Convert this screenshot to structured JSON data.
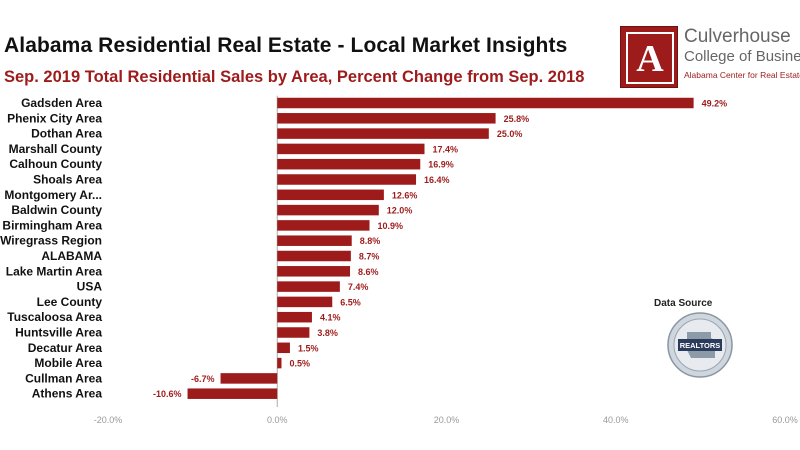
{
  "header": {
    "title": "Alabama Residential Real Estate - Local Market Insights",
    "subtitle": "Sep. 2019 Total Residential Sales by Area, Percent Change from Sep. 2018"
  },
  "logo": {
    "seal_letter": "A",
    "line1": "Culverhouse",
    "line2": "College of Business",
    "line3": "Alabama Center for Real Estate"
  },
  "data_source": {
    "label": "Data Source",
    "badge_text": "REALTORS"
  },
  "colors": {
    "bar": "#9e1b1b",
    "label": "#9e1b1b",
    "axis": "#aaaaaa"
  },
  "chart_data": {
    "type": "bar",
    "orientation": "horizontal",
    "title": "Alabama Residential Real Estate - Local Market Insights",
    "subtitle": "Sep. 2019 Total Residential Sales by Area, Percent Change from Sep. 2018",
    "categories": [
      "Gadsden Area",
      "Phenix City Area",
      "Dothan Area",
      "Marshall County",
      "Calhoun County",
      "Shoals Area",
      "Montgomery Ar...",
      "Baldwin County",
      "Birmingham Area",
      "Wiregrass Region",
      "ALABAMA",
      "Lake Martin Area",
      "USA",
      "Lee County",
      "Tuscaloosa Area",
      "Huntsville Area",
      "Decatur Area",
      "Mobile Area",
      "Cullman Area",
      "Athens Area"
    ],
    "values": [
      49.2,
      25.8,
      25.0,
      17.4,
      16.9,
      16.4,
      12.6,
      12.0,
      10.9,
      8.8,
      8.7,
      8.6,
      7.4,
      6.5,
      4.1,
      3.8,
      1.5,
      0.5,
      -6.7,
      -10.6
    ],
    "value_labels": [
      "49.2%",
      "25.8%",
      "25.0%",
      "17.4%",
      "16.9%",
      "16.4%",
      "12.6%",
      "12.0%",
      "10.9%",
      "8.8%",
      "8.7%",
      "8.6%",
      "7.4%",
      "6.5%",
      "4.1%",
      "3.8%",
      "1.5%",
      "0.5%",
      "-6.7%",
      "-10.6%"
    ],
    "xlim": [
      -20,
      60
    ],
    "x_ticks": [
      -20,
      0,
      20,
      40,
      60
    ],
    "x_tick_labels": [
      "-20.0%",
      "0.0%",
      "20.0%",
      "40.0%",
      "60.0%"
    ],
    "xlabel": "",
    "ylabel": "",
    "grid": false,
    "legend": "none"
  }
}
